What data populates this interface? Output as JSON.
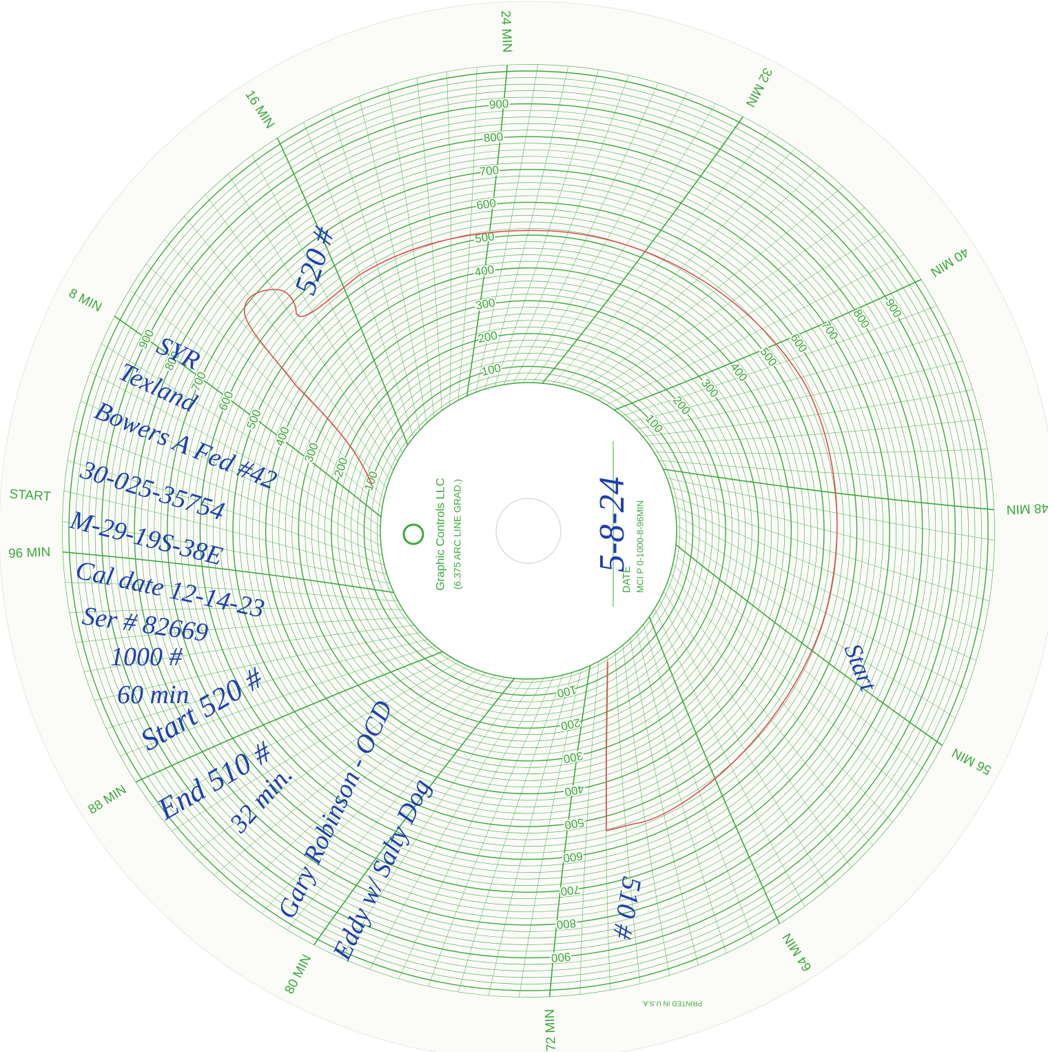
{
  "header": {
    "brand": "Graphic Controls LLC",
    "spec": "(6.375 ARC LINE GRAD.)",
    "date_label": "DATE",
    "part": "MCI P 0-1000-8-96MIN",
    "printed": "PRINTED IN U.S.A."
  },
  "time_labels": [
    "START",
    "8 MIN",
    "16 MIN",
    "24 MIN",
    "32 MIN",
    "40 MIN",
    "48 MIN",
    "56 MIN",
    "64 MIN",
    "72 MIN",
    "80 MIN",
    "88 MIN",
    "96 MIN"
  ],
  "scale": [
    100,
    200,
    300,
    400,
    500,
    600,
    700,
    800,
    900
  ],
  "notes": [
    "SYR",
    "Texland",
    "Bowers A Fed #42",
    "30-025-35754",
    "M-29-19S-38E",
    "Cal date 12-14-23",
    "Ser # 82669",
    "1000 #",
    "60 min",
    "Start 520 #",
    "End 510 #",
    "32 min.",
    "Gary Robinson - OCD",
    "Eddy w/ Salty Dog",
    "520 #",
    "5-8-24",
    "510 #",
    "Start"
  ]
}
